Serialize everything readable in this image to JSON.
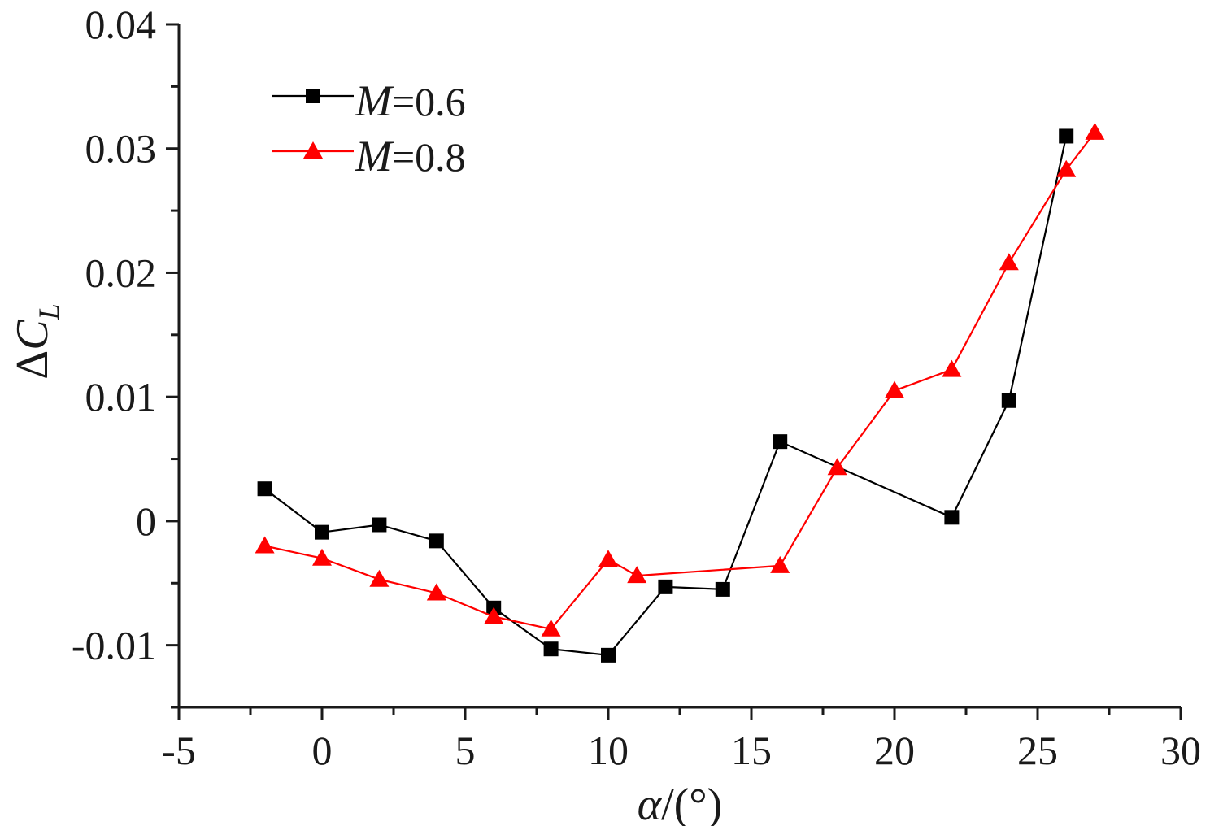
{
  "chart_data": {
    "type": "line",
    "title": "",
    "xlabel": {
      "symbol": "α",
      "unit": "/(°)"
    },
    "ylabel": {
      "prefix": "Δ",
      "symbol": "C",
      "subscript": "L"
    },
    "xlim": [
      -5,
      30
    ],
    "ylim": [
      -0.015,
      0.04
    ],
    "x_ticks": [
      -5,
      0,
      5,
      10,
      15,
      20,
      25,
      30
    ],
    "x_tick_labels": [
      "-5",
      "0",
      "5",
      "10",
      "15",
      "20",
      "25",
      "30"
    ],
    "y_ticks": [
      -0.01,
      0,
      0.01,
      0.02,
      0.03,
      0.04
    ],
    "y_tick_labels": [
      "-0.01",
      "0",
      "0.01",
      "0.02",
      "0.03",
      "0.04"
    ],
    "grid": false,
    "legend_position": "top-left",
    "series": [
      {
        "name": "M=0.6",
        "legend_symbol": "M",
        "legend_value": "=0.6",
        "color": "#000000",
        "marker": "square",
        "x": [
          -2,
          0,
          2,
          4,
          6,
          8,
          10,
          12,
          14,
          16,
          22,
          24,
          26
        ],
        "y": [
          0.0026,
          -0.0009,
          -0.0003,
          -0.0016,
          -0.007,
          -0.0103,
          -0.0108,
          -0.0053,
          -0.0055,
          0.0064,
          0.0003,
          0.0097,
          0.031
        ]
      },
      {
        "name": "M=0.8",
        "legend_symbol": "M",
        "legend_value": "=0.8",
        "color": "#ff0000",
        "marker": "triangle",
        "x": [
          -2,
          0,
          2,
          4,
          6,
          8,
          10,
          11,
          16,
          18,
          20,
          22,
          24,
          26,
          27
        ],
        "y": [
          -0.002,
          -0.003,
          -0.0047,
          -0.0058,
          -0.0077,
          -0.0087,
          -0.0031,
          -0.0044,
          -0.0036,
          0.0043,
          0.0105,
          0.0122,
          0.0208,
          0.0283,
          0.0313
        ]
      }
    ]
  }
}
